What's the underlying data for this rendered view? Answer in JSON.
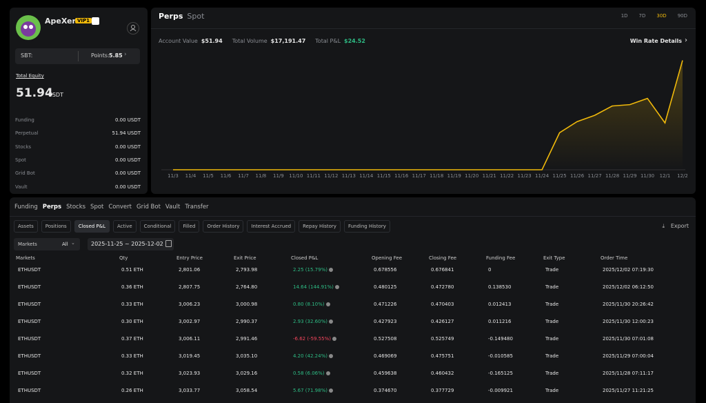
{
  "profile": {
    "name": "ApeXer",
    "badge": "VIP1",
    "sbt_label": "SBT:",
    "points_label": "Points:",
    "points": "5.85",
    "equity_label": "Total Equity",
    "equity": "51.94",
    "equity_unit": "USDT",
    "balances": [
      {
        "label": "Funding",
        "value": "0.00 USDT"
      },
      {
        "label": "Perpetual",
        "value": "51.94 USDT"
      },
      {
        "label": "Stocks",
        "value": "0.00 USDT"
      },
      {
        "label": "Spot",
        "value": "0.00 USDT"
      },
      {
        "label": "Grid Bot",
        "value": "0.00 USDT"
      },
      {
        "label": "Vault",
        "value": "0.00 USDT"
      }
    ]
  },
  "summary": {
    "tabs": [
      "Perps",
      "Spot"
    ],
    "active_tab": 0,
    "periods": [
      "1D",
      "7D",
      "30D",
      "90D"
    ],
    "active_period": 2,
    "stats": [
      {
        "label": "Account Value",
        "value": "$51.94"
      },
      {
        "label": "Total Volume",
        "value": "$17,191.47"
      },
      {
        "label": "Total P&L",
        "value": "$24.52",
        "color": "#2ebd85"
      }
    ],
    "link": "Win Rate Details"
  },
  "chart_data": {
    "type": "line",
    "categories": [
      "11/3",
      "11/4",
      "11/5",
      "11/6",
      "11/7",
      "11/8",
      "11/9",
      "11/10",
      "11/11",
      "11/12",
      "11/13",
      "11/14",
      "11/15",
      "11/16",
      "11/17",
      "11/18",
      "11/19",
      "11/20",
      "11/21",
      "11/22",
      "11/23",
      "11/24",
      "11/25",
      "11/26",
      "11/27",
      "11/28",
      "11/29",
      "11/30",
      "12/1",
      "12/2"
    ],
    "values": [
      0,
      0,
      0,
      0,
      0,
      0,
      0,
      0,
      0,
      0,
      0,
      0,
      0,
      0,
      0,
      0,
      0,
      0,
      0,
      0,
      0,
      0,
      8.3,
      10.8,
      12.2,
      14.3,
      14.6,
      16.0,
      10.5,
      24.52
    ],
    "color": "#f0b90b",
    "ylim": [
      0,
      28
    ]
  },
  "history": {
    "tabs": [
      "Funding",
      "Perps",
      "Stocks",
      "Spot",
      "Convert",
      "Grid Bot",
      "Vault",
      "Transfer"
    ],
    "active_tab": 1,
    "subtabs": [
      "Assets",
      "Positions",
      "Closed P&L",
      "Active",
      "Conditional",
      "Filled",
      "Order History",
      "Interest Accrued",
      "Repay History",
      "Funding History"
    ],
    "active_subtab": 2,
    "export": "Export",
    "market_filter": "Markets",
    "market_value": "All",
    "date_range": "2025-11-25 ~ 2025-12-02",
    "columns": [
      "Markets",
      "Qty",
      "Entry Price",
      "Exit Price",
      "Closed P&L",
      "Opening Fee",
      "Closing Fee",
      "Funding Fee",
      "Exit Type",
      "Order Time"
    ],
    "rows": [
      [
        "ETHUSDT",
        "0.51 ETH",
        "2,801.06",
        "2,793.98",
        "2.25 (15.79%)",
        "0.678556",
        "0.676841",
        "0",
        "Trade",
        "2025/12/02 07:19:30"
      ],
      [
        "ETHUSDT",
        "0.36 ETH",
        "2,807.75",
        "2,764.80",
        "14.64 (144.91%)",
        "0.480125",
        "0.472780",
        "0.138530",
        "Trade",
        "2025/12/02 06:12:50"
      ],
      [
        "ETHUSDT",
        "0.33 ETH",
        "3,006.23",
        "3,000.98",
        "0.80 (8.10%)",
        "0.471226",
        "0.470403",
        "0.012413",
        "Trade",
        "2025/11/30 20:26:42"
      ],
      [
        "ETHUSDT",
        "0.30 ETH",
        "3,002.97",
        "2,990.37",
        "2.93 (32.60%)",
        "0.427923",
        "0.426127",
        "0.011216",
        "Trade",
        "2025/11/30 12:00:23"
      ],
      [
        "ETHUSDT",
        "0.37 ETH",
        "3,006.11",
        "2,991.46",
        "-6.62 (-59.55%)",
        "0.527508",
        "0.525749",
        "-0.149480",
        "Trade",
        "2025/11/30 07:01:08"
      ],
      [
        "ETHUSDT",
        "0.33 ETH",
        "3,019.45",
        "3,035.10",
        "4.20 (42.24%)",
        "0.469069",
        "0.475751",
        "-0.010585",
        "Trade",
        "2025/11/29 07:00:04"
      ],
      [
        "ETHUSDT",
        "0.32 ETH",
        "3,023.93",
        "3,029.16",
        "0.58 (6.06%)",
        "0.459638",
        "0.460432",
        "-0.165125",
        "Trade",
        "2025/11/28 07:11:17"
      ],
      [
        "ETHUSDT",
        "0.26 ETH",
        "3,033.77",
        "3,058.54",
        "5.67 (71.98%)",
        "0.374670",
        "0.377729",
        "-0.009921",
        "Trade",
        "2025/11/27 11:21:25"
      ]
    ]
  }
}
